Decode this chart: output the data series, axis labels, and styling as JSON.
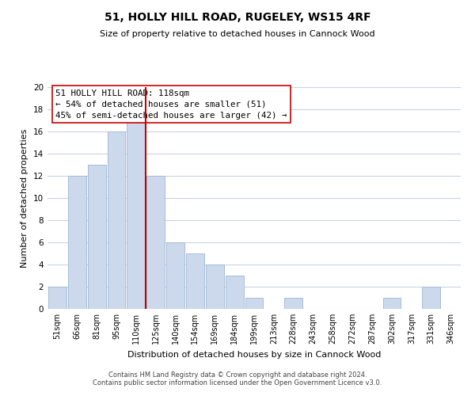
{
  "title": "51, HOLLY HILL ROAD, RUGELEY, WS15 4RF",
  "subtitle": "Size of property relative to detached houses in Cannock Wood",
  "xlabel": "Distribution of detached houses by size in Cannock Wood",
  "ylabel": "Number of detached properties",
  "bar_labels": [
    "51sqm",
    "66sqm",
    "81sqm",
    "95sqm",
    "110sqm",
    "125sqm",
    "140sqm",
    "154sqm",
    "169sqm",
    "184sqm",
    "199sqm",
    "213sqm",
    "228sqm",
    "243sqm",
    "258sqm",
    "272sqm",
    "287sqm",
    "302sqm",
    "317sqm",
    "331sqm",
    "346sqm"
  ],
  "bar_values": [
    2,
    12,
    13,
    16,
    17,
    12,
    6,
    5,
    4,
    3,
    1,
    0,
    1,
    0,
    0,
    0,
    0,
    1,
    0,
    2,
    0
  ],
  "bar_color": "#ccd9ed",
  "bar_edge_color": "#a8bdd6",
  "vline_x": 4.5,
  "vline_color": "#cc0000",
  "ylim": [
    0,
    20
  ],
  "yticks": [
    0,
    2,
    4,
    6,
    8,
    10,
    12,
    14,
    16,
    18,
    20
  ],
  "annotation_title": "51 HOLLY HILL ROAD: 118sqm",
  "annotation_line1": "← 54% of detached houses are smaller (51)",
  "annotation_line2": "45% of semi-detached houses are larger (42) →",
  "footer1": "Contains HM Land Registry data © Crown copyright and database right 2024.",
  "footer2": "Contains public sector information licensed under the Open Government Licence v3.0.",
  "bg_color": "#ffffff",
  "grid_color": "#c8d4e8"
}
